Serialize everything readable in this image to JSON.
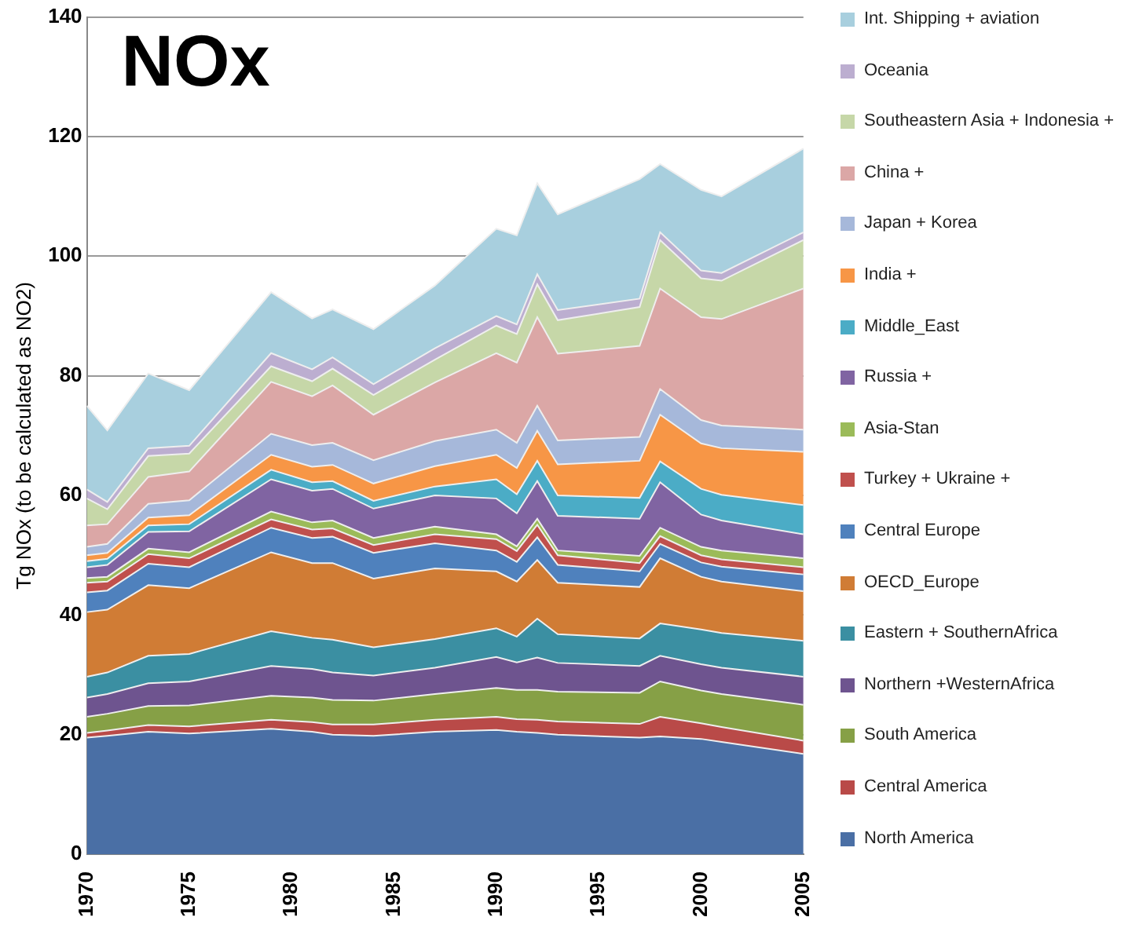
{
  "chart_data": {
    "type": "area",
    "title": "NOx",
    "ylabel": "Tg NOx (to be calculated as NO2)",
    "stacked": true,
    "legend": "right",
    "grid": "y",
    "x": [
      1970,
      1971,
      1973,
      1975,
      1979,
      1981,
      1982,
      1984,
      1987,
      1990,
      1991,
      1992,
      1993,
      1997,
      1998,
      2000,
      2001,
      2005
    ],
    "xlim": [
      1970,
      2005
    ],
    "xticks": [
      1970,
      1975,
      1980,
      1985,
      1990,
      1995,
      2000,
      2005
    ],
    "ylim": [
      0,
      140
    ],
    "yticks": [
      0,
      20,
      40,
      60,
      80,
      100,
      120,
      140
    ],
    "series": [
      {
        "name": "North America",
        "color": "#4a6fa5",
        "values": [
          19.5,
          19.8,
          20.5,
          20.2,
          21,
          20.5,
          20,
          19.8,
          20.5,
          20.8,
          20.5,
          20.3,
          20,
          19.5,
          19.7,
          19.3,
          18.8,
          16.8
        ]
      },
      {
        "name": "Central America",
        "color": "#b94a48",
        "values": [
          0.8,
          0.9,
          1.1,
          1.2,
          1.5,
          1.6,
          1.7,
          1.9,
          2,
          2.2,
          2.1,
          2.2,
          2.2,
          2.3,
          3.3,
          2.6,
          2.5,
          2.2
        ]
      },
      {
        "name": "South America",
        "color": "#86a046",
        "values": [
          2.7,
          2.8,
          3.2,
          3.5,
          4,
          4.1,
          4.1,
          4,
          4.3,
          4.8,
          4.9,
          5,
          5,
          5.2,
          5.9,
          5.5,
          5.5,
          6
        ]
      },
      {
        "name": "Northern +WesternAfrica",
        "color": "#6e548f",
        "values": [
          3.2,
          3.3,
          3.8,
          4,
          5,
          4.8,
          4.6,
          4.2,
          4.4,
          5.2,
          4.6,
          5.4,
          4.8,
          4.5,
          4.3,
          4.4,
          4.4,
          4.7
        ]
      },
      {
        "name": "Eastern + SouthernAfrica",
        "color": "#3b8fa2",
        "values": [
          3.5,
          3.6,
          4.6,
          4.6,
          5.8,
          5.2,
          5.5,
          4.7,
          4.8,
          4.8,
          4.3,
          6.5,
          4.8,
          4.6,
          5.4,
          5.8,
          5.8,
          6
        ]
      },
      {
        "name": "OECD_Europe",
        "color": "#d07c35",
        "values": [
          10.8,
          10.5,
          11.8,
          11,
          13.2,
          12.5,
          12.8,
          11.5,
          11.8,
          9.5,
          9.2,
          9.8,
          8.6,
          8.6,
          10.9,
          8.8,
          8.6,
          8.3
        ]
      },
      {
        "name": "Central Europe",
        "color": "#4f81bd",
        "values": [
          3.3,
          3.2,
          3.6,
          3.5,
          4.1,
          4.2,
          4.4,
          4.3,
          4.2,
          3.5,
          3.3,
          3.8,
          3,
          2.6,
          2.4,
          2.4,
          2.5,
          2.8
        ]
      },
      {
        "name": "Turkey + Ukraine +",
        "color": "#c0504d",
        "values": [
          1.6,
          1.5,
          1.6,
          1.5,
          1.4,
          1.4,
          1.4,
          1.3,
          1.5,
          1.9,
          1.8,
          2.1,
          1.6,
          1.4,
          1.3,
          1.2,
          1.2,
          1.2
        ]
      },
      {
        "name": "Asia-Stan",
        "color": "#9bbb59",
        "values": [
          0.8,
          0.8,
          0.9,
          1,
          1.3,
          1.2,
          1.3,
          1.2,
          1.3,
          0.8,
          0.8,
          1,
          0.8,
          1.2,
          1.4,
          1.4,
          1.5,
          1.5
        ]
      },
      {
        "name": "Russia +",
        "color": "#8064a2",
        "values": [
          1.8,
          2,
          2.8,
          3.5,
          5.4,
          5.3,
          5.3,
          4.9,
          5.2,
          6,
          5.5,
          6.3,
          5.8,
          6.2,
          7.6,
          5.4,
          5,
          4
        ]
      },
      {
        "name": "Middle_East",
        "color": "#4bacc6",
        "values": [
          1,
          1,
          1.1,
          1.2,
          1.6,
          1.4,
          1.3,
          1.3,
          1.5,
          3.2,
          3.2,
          3.4,
          3.4,
          3.5,
          3.5,
          4.3,
          4.3,
          4.9
        ]
      },
      {
        "name": "India +",
        "color": "#f79646",
        "values": [
          1,
          1,
          1.3,
          1.5,
          2.5,
          2.6,
          2.7,
          2.9,
          3.4,
          4.1,
          4.4,
          5,
          5.2,
          6.2,
          7.8,
          7.6,
          7.8,
          8.9
        ]
      },
      {
        "name": "Japan + Korea",
        "color": "#a6b8da",
        "values": [
          1.4,
          1.5,
          2.3,
          2.5,
          3.5,
          3.6,
          3.7,
          3.9,
          4.2,
          4.2,
          4.2,
          4.2,
          4,
          4,
          4.3,
          3.9,
          3.8,
          3.7
        ]
      },
      {
        "name": "China +",
        "color": "#dba7a6",
        "values": [
          3.6,
          3.3,
          4.5,
          4.8,
          8.7,
          8.2,
          9.6,
          7.6,
          9.8,
          12.8,
          13.4,
          14.8,
          14.5,
          15.2,
          16.8,
          17.2,
          17.8,
          23.6
        ]
      },
      {
        "name": "Southeastern Asia + Indonesia +",
        "color": "#c6d7a8",
        "values": [
          4.5,
          2.5,
          3.5,
          3,
          2.6,
          2.5,
          2.8,
          3.3,
          3.8,
          4.6,
          4.8,
          5.5,
          5.6,
          6.5,
          8.1,
          6.5,
          6.4,
          8.1
        ]
      },
      {
        "name": "Oceania",
        "color": "#bcaed0",
        "values": [
          1.5,
          1.2,
          1.3,
          1.3,
          2.2,
          2,
          1.9,
          1.8,
          1.9,
          1.6,
          1.6,
          1.7,
          1.7,
          1.4,
          1.3,
          1.3,
          1.3,
          1.3
        ]
      },
      {
        "name": "Int. Shipping + aviation",
        "color": "#a8cfde",
        "values": [
          14,
          12,
          12.5,
          9.3,
          10.2,
          8.5,
          8,
          9.2,
          10.5,
          14.6,
          14.9,
          15.2,
          16,
          20,
          11.4,
          13.5,
          12.8,
          14
        ]
      }
    ]
  }
}
